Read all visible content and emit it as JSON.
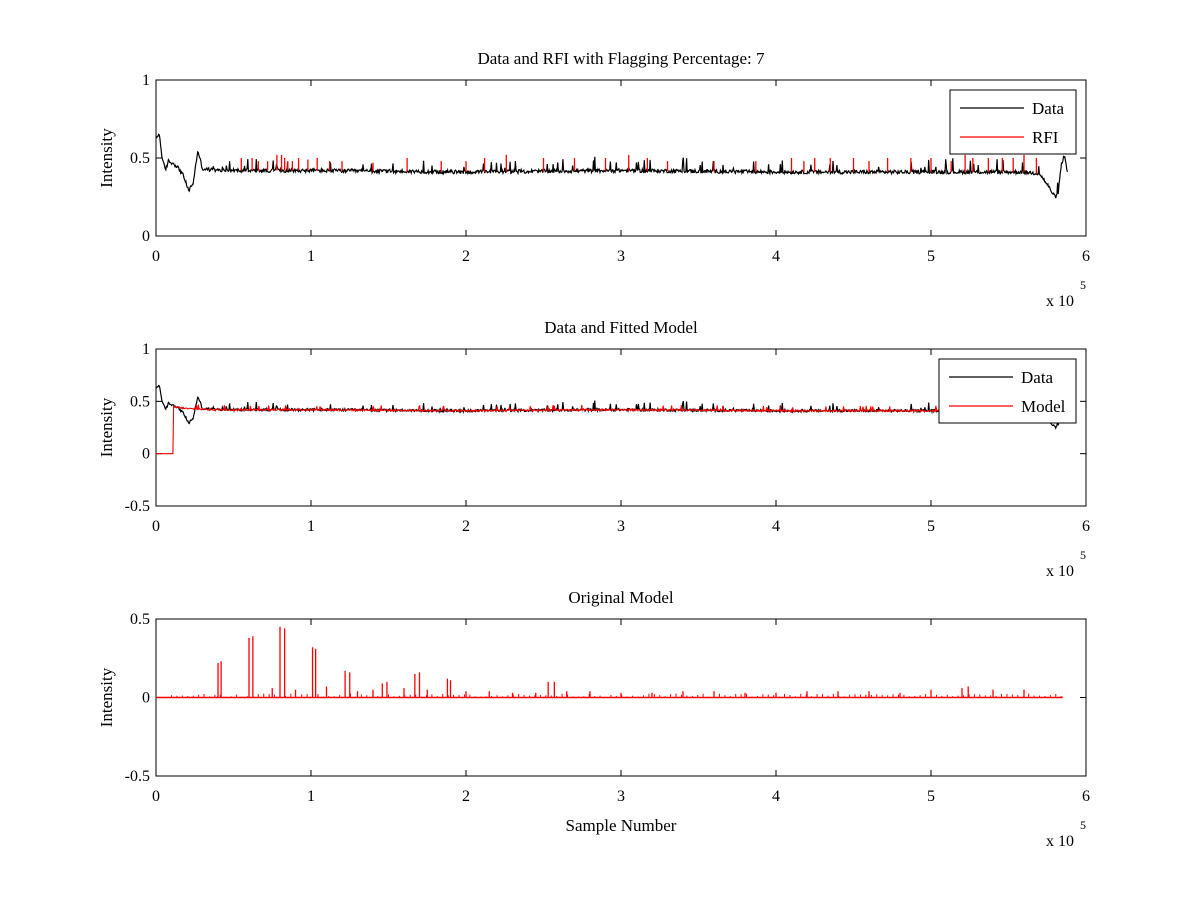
{
  "chart_data": [
    {
      "type": "line",
      "title": "Data and RFI with Flagging Percentage: 7",
      "xlabel": "",
      "ylabel": "Intensity",
      "xlim": [
        0,
        600000
      ],
      "ylim": [
        0,
        1
      ],
      "xticks": [
        "0",
        "1",
        "2",
        "3",
        "4",
        "5",
        "6"
      ],
      "yticks": [
        "0",
        "0.5",
        "1"
      ],
      "x_multiplier": {
        "base": "x 10",
        "exponent": "5"
      },
      "legend_position": "top-right",
      "grid": false,
      "series": [
        {
          "name": "Data",
          "color": "#000000",
          "profile": {
            "x": [
              0,
              2000,
              4000,
              6000,
              8000,
              12000,
              15000,
              18000,
              21000,
              24000,
              27000,
              30000,
              40000,
              100000,
              200000,
              300000,
              400000,
              500000,
              560000,
              570000,
              575000,
              580000,
              582000,
              584000,
              586000,
              588000
            ],
            "y": [
              0.62,
              0.66,
              0.5,
              0.42,
              0.48,
              0.46,
              0.43,
              0.38,
              0.29,
              0.34,
              0.55,
              0.43,
              0.42,
              0.42,
              0.41,
              0.42,
              0.41,
              0.41,
              0.41,
              0.4,
              0.33,
              0.25,
              0.27,
              0.45,
              0.52,
              0.4
            ]
          },
          "baseline": 0.42,
          "noise": 0.012
        },
        {
          "name": "RFI",
          "color": "#ff0000",
          "spikes_x": [
            55000,
            62000,
            66000,
            72000,
            78000,
            81000,
            83000,
            85000,
            88000,
            92000,
            98000,
            104000,
            112000,
            120000,
            140000,
            162000,
            184000,
            200000,
            212000,
            226000,
            250000,
            270000,
            290000,
            305000,
            317000,
            330000,
            360000,
            387000,
            410000,
            418000,
            425000,
            435000,
            450000,
            460000,
            472000,
            487000,
            500000,
            513000,
            522000,
            527000,
            537000,
            546000,
            553000,
            560000,
            568000
          ],
          "spikes_y": [
            0.5,
            0.5,
            0.48,
            0.48,
            0.52,
            0.52,
            0.5,
            0.48,
            0.48,
            0.5,
            0.49,
            0.5,
            0.48,
            0.48,
            0.47,
            0.5,
            0.48,
            0.48,
            0.5,
            0.52,
            0.5,
            0.5,
            0.5,
            0.52,
            0.5,
            0.48,
            0.48,
            0.48,
            0.5,
            0.48,
            0.5,
            0.5,
            0.5,
            0.48,
            0.5,
            0.5,
            0.5,
            0.48,
            0.52,
            0.5,
            0.5,
            0.5,
            0.5,
            0.52,
            0.5
          ]
        }
      ]
    },
    {
      "type": "line",
      "title": "Data and Fitted Model",
      "xlabel": "",
      "ylabel": "Intensity",
      "xlim": [
        0,
        600000
      ],
      "ylim": [
        -0.5,
        1
      ],
      "xticks": [
        "0",
        "1",
        "2",
        "3",
        "4",
        "5",
        "6"
      ],
      "yticks": [
        "-0.5",
        "0",
        "0.5",
        "1"
      ],
      "x_multiplier": {
        "base": "x 10",
        "exponent": "5"
      },
      "legend_position": "top-right",
      "grid": false,
      "series": [
        {
          "name": "Data",
          "color": "#000000",
          "same_as_panel": 0
        },
        {
          "name": "Model",
          "color": "#ff0000",
          "profile": {
            "x": [
              0,
              11000,
              11001,
              20000,
              40000,
              100000,
              200000,
              300000,
              400000,
              500000,
              588000
            ],
            "y": [
              0,
              0,
              0.45,
              0.43,
              0.42,
              0.42,
              0.41,
              0.42,
              0.41,
              0.41,
              0.41
            ]
          },
          "noise": 0.008
        }
      ]
    },
    {
      "type": "line",
      "title": "Original Model",
      "xlabel": "Sample Number",
      "ylabel": "Intensity",
      "xlim": [
        0,
        600000
      ],
      "ylim": [
        -0.5,
        0.5
      ],
      "xticks": [
        "0",
        "1",
        "2",
        "3",
        "4",
        "5",
        "6"
      ],
      "yticks": [
        "-0.5",
        "0",
        "0.5"
      ],
      "x_multiplier": {
        "base": "x 10",
        "exponent": "5"
      },
      "legend_position": "none",
      "grid": false,
      "series": [
        {
          "color": "#ff0000",
          "baseline": 0,
          "x_range": [
            0,
            585000
          ],
          "spikes_x": [
            40000,
            42000,
            60000,
            62500,
            80000,
            83000,
            101000,
            103000,
            122000,
            125000,
            146000,
            149000,
            167000,
            170000,
            188000,
            190000,
            253000,
            257000,
            75000,
            90000,
            110000,
            130000,
            140000,
            160000,
            175000,
            200000,
            215000,
            230000,
            245000,
            265000,
            280000,
            300000,
            320000,
            340000,
            360000,
            380000,
            400000,
            420000,
            440000,
            460000,
            480000,
            500000,
            520000,
            524000,
            540000,
            560000
          ],
          "spikes_y": [
            0.22,
            0.23,
            0.38,
            0.39,
            0.45,
            0.44,
            0.32,
            0.31,
            0.17,
            0.16,
            0.09,
            0.1,
            0.15,
            0.16,
            0.12,
            0.11,
            0.1,
            0.1,
            0.06,
            0.05,
            0.07,
            0.04,
            0.05,
            0.06,
            0.05,
            0.04,
            0.04,
            0.03,
            0.03,
            0.04,
            0.04,
            0.03,
            0.03,
            0.04,
            0.04,
            0.03,
            0.03,
            0.04,
            0.04,
            0.04,
            0.03,
            0.05,
            0.06,
            0.07,
            0.05,
            0.05
          ]
        }
      ]
    }
  ]
}
